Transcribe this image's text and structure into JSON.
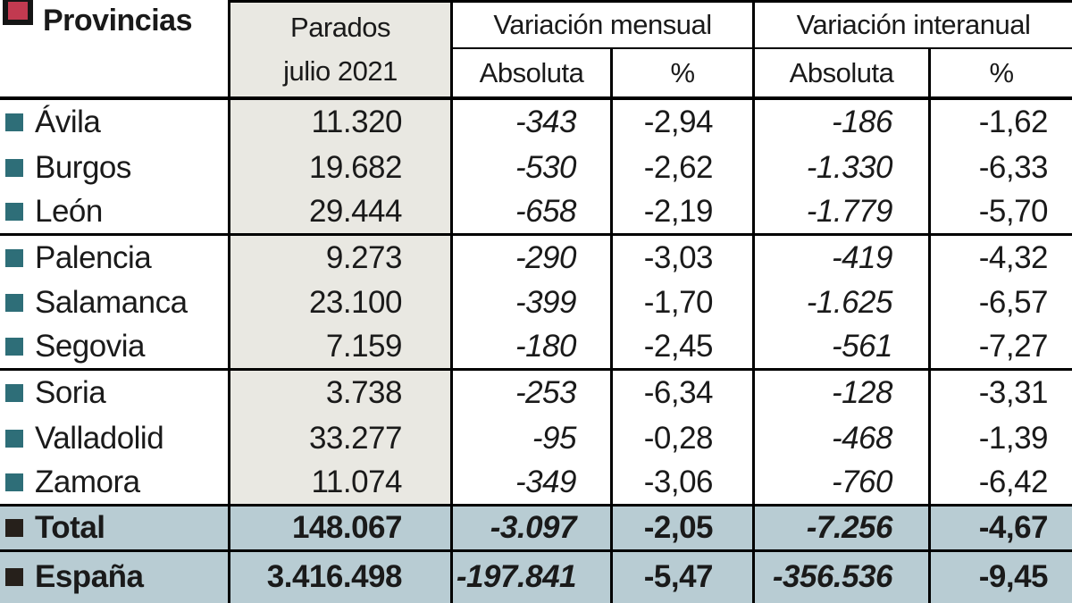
{
  "title": {
    "label": "Provincias"
  },
  "header": {
    "parados_line1": "Parados",
    "parados_line2": "julio 2021",
    "mensual": "Variación mensual",
    "interanual": "Variación interanual",
    "absoluta": "Absoluta",
    "pct": "%"
  },
  "rows": [
    {
      "name": "Ávila",
      "parados": "11.320",
      "vm_abs": "-343",
      "vm_pct": "-2,94",
      "vi_abs": "-186",
      "vi_pct": "-1,62"
    },
    {
      "name": "Burgos",
      "parados": "19.682",
      "vm_abs": "-530",
      "vm_pct": "-2,62",
      "vi_abs": "-1.330",
      "vi_pct": "-6,33"
    },
    {
      "name": "León",
      "parados": "29.444",
      "vm_abs": "-658",
      "vm_pct": "-2,19",
      "vi_abs": "-1.779",
      "vi_pct": "-5,70"
    },
    {
      "name": "Palencia",
      "parados": "9.273",
      "vm_abs": "-290",
      "vm_pct": "-3,03",
      "vi_abs": "-419",
      "vi_pct": "-4,32"
    },
    {
      "name": "Salamanca",
      "parados": "23.100",
      "vm_abs": "-399",
      "vm_pct": "-1,70",
      "vi_abs": "-1.625",
      "vi_pct": "-6,57"
    },
    {
      "name": "Segovia",
      "parados": "7.159",
      "vm_abs": "-180",
      "vm_pct": "-2,45",
      "vi_abs": "-561",
      "vi_pct": "-7,27"
    },
    {
      "name": "Soria",
      "parados": "3.738",
      "vm_abs": "-253",
      "vm_pct": "-6,34",
      "vi_abs": "-128",
      "vi_pct": "-3,31"
    },
    {
      "name": "Valladolid",
      "parados": "33.277",
      "vm_abs": "-95",
      "vm_pct": "-0,28",
      "vi_abs": "-468",
      "vi_pct": "-1,39"
    },
    {
      "name": "Zamora",
      "parados": "11.074",
      "vm_abs": "-349",
      "vm_pct": "-3,06",
      "vi_abs": "-760",
      "vi_pct": "-6,42"
    }
  ],
  "total": {
    "name": "Total",
    "parados": "148.067",
    "vm_abs": "-3.097",
    "vm_pct": "-2,05",
    "vi_abs": "-7.256",
    "vi_pct": "-4,67"
  },
  "espana": {
    "name": "España",
    "parados": "3.416.498",
    "vm_abs": "-197.841",
    "vm_pct": "-5,47",
    "vi_abs": "-356.536",
    "vi_pct": "-9,45"
  },
  "colors": {
    "red": "#c23a50",
    "teal": "#2e6e78",
    "darksq": "#26201b",
    "graycol": "#e9e8e2",
    "bluerow": "#b8ccd3",
    "border": "#000000",
    "text": "#1a1a1a"
  },
  "chart_data": {
    "type": "table",
    "title": "Provincias — Parados julio 2021",
    "columns": [
      "Provincia",
      "Parados julio 2021",
      "Variación mensual Absoluta",
      "Variación mensual %",
      "Variación interanual Absoluta",
      "Variación interanual %"
    ],
    "rows": [
      [
        "Ávila",
        11320,
        -343,
        -2.94,
        -186,
        -1.62
      ],
      [
        "Burgos",
        19682,
        -530,
        -2.62,
        -1330,
        -6.33
      ],
      [
        "León",
        29444,
        -658,
        -2.19,
        -1779,
        -5.7
      ],
      [
        "Palencia",
        9273,
        -290,
        -3.03,
        -419,
        -4.32
      ],
      [
        "Salamanca",
        23100,
        -399,
        -1.7,
        -1625,
        -6.57
      ],
      [
        "Segovia",
        7159,
        -180,
        -2.45,
        -561,
        -7.27
      ],
      [
        "Soria",
        3738,
        -253,
        -6.34,
        -128,
        -3.31
      ],
      [
        "Valladolid",
        33277,
        -95,
        -0.28,
        -468,
        -1.39
      ],
      [
        "Zamora",
        11074,
        -349,
        -3.06,
        -760,
        -6.42
      ],
      [
        "Total",
        148067,
        -3097,
        -2.05,
        -7256,
        -4.67
      ],
      [
        "España",
        3416498,
        -197841,
        -5.47,
        -356536,
        -9.45
      ]
    ]
  }
}
